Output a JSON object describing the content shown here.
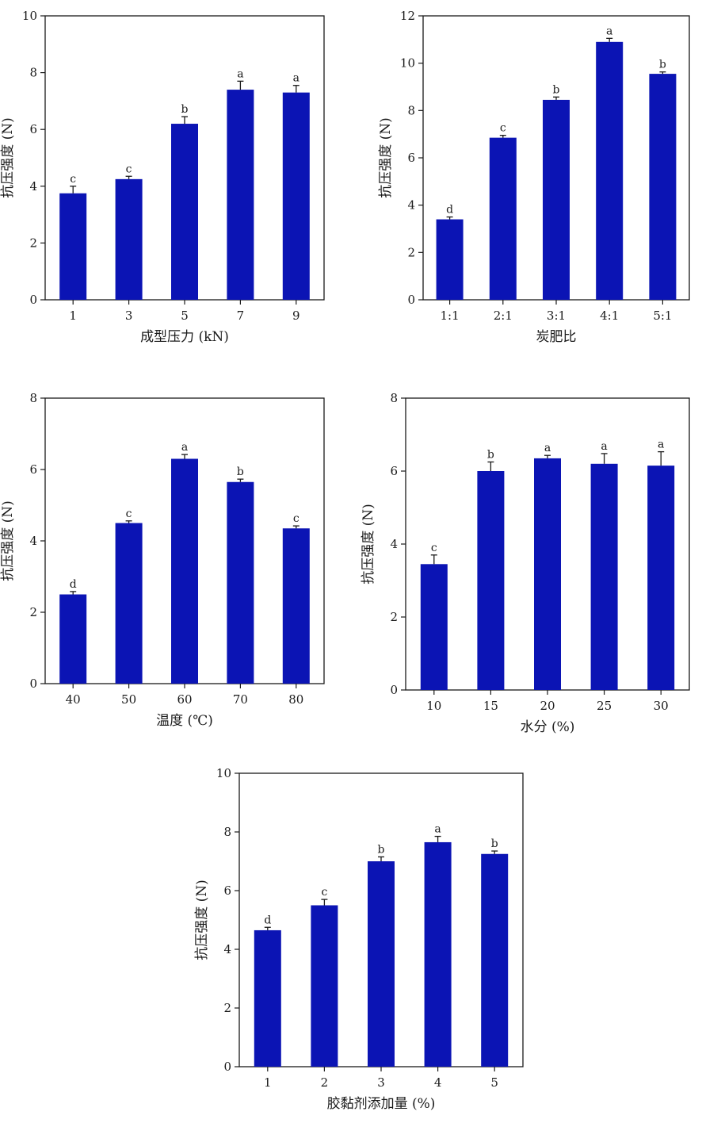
{
  "colors": {
    "bar": "#0B14B4",
    "axis": "#1a1a1a"
  },
  "chart_data": [
    {
      "type": "bar",
      "xlabel": "成型压力 (kN)",
      "ylabel": "抗压强度 (N)",
      "ylim": [
        0,
        10
      ],
      "yticks": [
        "0",
        "2",
        "4",
        "6",
        "8",
        "10"
      ],
      "categories": [
        "1",
        "3",
        "5",
        "7",
        "9"
      ],
      "values": [
        3.75,
        4.25,
        6.2,
        7.4,
        7.3
      ],
      "errors": [
        0.25,
        0.1,
        0.25,
        0.3,
        0.25
      ],
      "letters": [
        "c",
        "c",
        "b",
        "a",
        "a"
      ]
    },
    {
      "type": "bar",
      "xlabel": "炭肥比",
      "ylabel": "抗压强度 (N)",
      "ylim": [
        0,
        12
      ],
      "yticks": [
        "0",
        "2",
        "4",
        "6",
        "8",
        "10",
        "12"
      ],
      "categories": [
        "1:1",
        "2:1",
        "3:1",
        "4:1",
        "5:1"
      ],
      "values": [
        3.4,
        6.85,
        8.45,
        10.9,
        9.55
      ],
      "errors": [
        0.1,
        0.1,
        0.12,
        0.15,
        0.08
      ],
      "letters": [
        "d",
        "c",
        "b",
        "a",
        "b"
      ]
    },
    {
      "type": "bar",
      "xlabel": "温度 (℃)",
      "ylabel": "抗压强度 (N)",
      "ylim": [
        0,
        8
      ],
      "yticks": [
        "0",
        "2",
        "4",
        "6",
        "8"
      ],
      "categories": [
        "40",
        "50",
        "60",
        "70",
        "80"
      ],
      "values": [
        2.5,
        4.5,
        6.3,
        5.65,
        4.35
      ],
      "errors": [
        0.08,
        0.06,
        0.12,
        0.08,
        0.07
      ],
      "letters": [
        "d",
        "c",
        "a",
        "b",
        "c"
      ]
    },
    {
      "type": "bar",
      "xlabel": "水分 (%)",
      "ylabel": "抗压强度 (N)",
      "ylim": [
        0,
        8
      ],
      "yticks": [
        "0",
        "2",
        "4",
        "6",
        "8"
      ],
      "categories": [
        "10",
        "15",
        "20",
        "25",
        "30"
      ],
      "values": [
        3.45,
        6.0,
        6.35,
        6.2,
        6.15
      ],
      "errors": [
        0.25,
        0.25,
        0.08,
        0.28,
        0.38
      ],
      "letters": [
        "c",
        "b",
        "a",
        "a",
        "a"
      ]
    },
    {
      "type": "bar",
      "xlabel": "胶黏剂添加量 (%)",
      "ylabel": "抗压强度 (N)",
      "ylim": [
        0,
        10
      ],
      "yticks": [
        "0",
        "2",
        "4",
        "6",
        "8",
        "10"
      ],
      "categories": [
        "1",
        "2",
        "3",
        "4",
        "5"
      ],
      "values": [
        4.65,
        5.5,
        7.0,
        7.65,
        7.25
      ],
      "errors": [
        0.1,
        0.2,
        0.15,
        0.2,
        0.1
      ],
      "letters": [
        "d",
        "c",
        "b",
        "a",
        "b"
      ]
    }
  ]
}
